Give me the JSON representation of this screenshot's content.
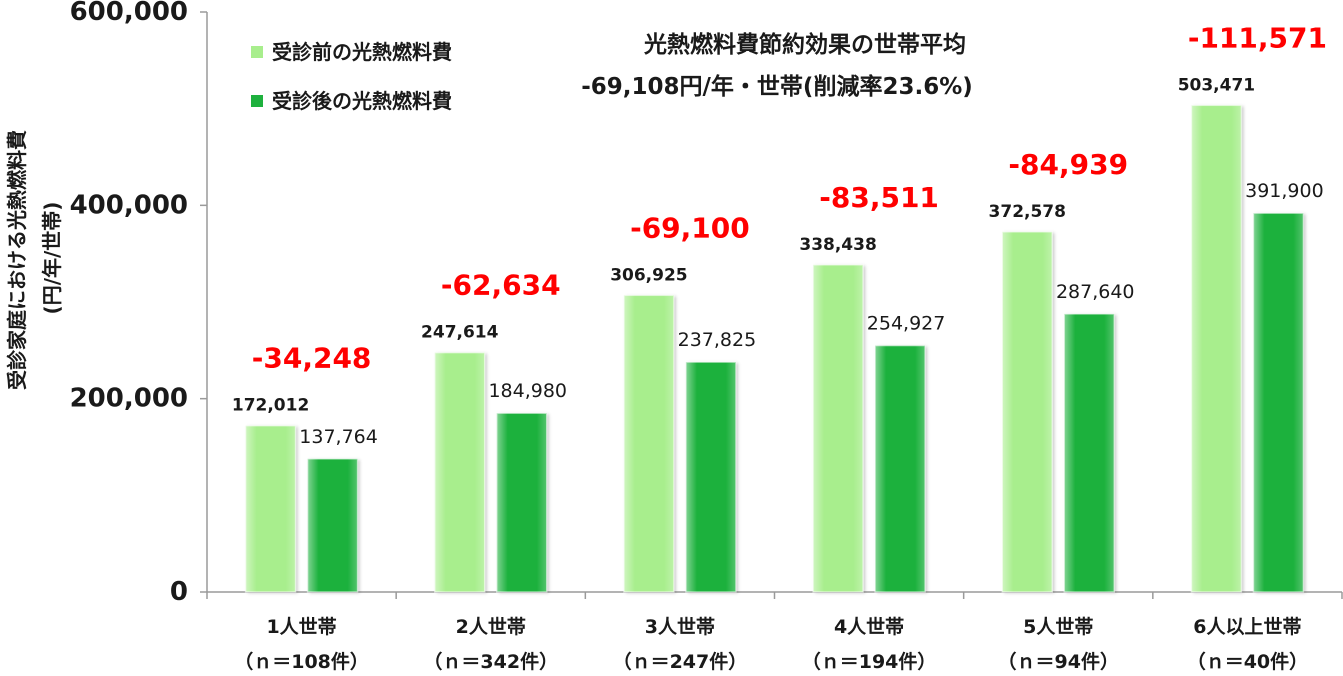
{
  "chart_data": {
    "type": "bar",
    "categories": [
      "1人世帯",
      "2人世帯",
      "3人世帯",
      "4人世帯",
      "5人世帯",
      "6人以上世帯"
    ],
    "category_sublabels": [
      "（ｎ＝108件）",
      "（ｎ＝342件）",
      "（ｎ＝247件）",
      "（ｎ＝194件）",
      "（ｎ＝94件）",
      "（ｎ＝40件）"
    ],
    "series": [
      {
        "name": "受診前の光熱燃料費",
        "color": "#a8ee8d",
        "values": [
          172012,
          247614,
          306925,
          338438,
          372578,
          503471
        ],
        "value_labels": [
          "172,012",
          "247,614",
          "306,925",
          "338,438",
          "372,578",
          "503,471"
        ]
      },
      {
        "name": "受診後の光熱燃料費",
        "color": "#1eb13e",
        "values": [
          137764,
          184980,
          237825,
          254927,
          287640,
          391900
        ],
        "value_labels": [
          "137,764",
          "184,980",
          "237,825",
          "254,927",
          "287,640",
          "391,900"
        ]
      }
    ],
    "difference_labels": [
      "-34,248",
      "-62,634",
      "-69,100",
      "-83,511",
      "-84,939",
      "-111,571"
    ],
    "difference_color": "#ff0000",
    "ylabel": "受診家庭における光熱燃料費",
    "ylabel_unit": "(円/年/世帯)",
    "ylim": [
      0,
      600000
    ],
    "yticks": [
      0,
      200000,
      400000,
      600000
    ],
    "ytick_labels": [
      "0",
      "200,000",
      "400,000",
      "600,000"
    ],
    "annotation": {
      "heading": "光熱燃料費節約効果の世帯平均",
      "detail": "-69,108円/年・世帯(削減率23.6%)"
    },
    "legend_position": "top-left",
    "grid": false
  }
}
